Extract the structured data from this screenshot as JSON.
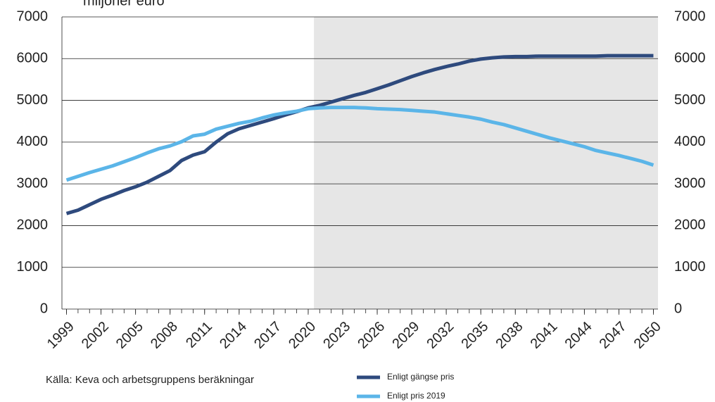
{
  "chart_data": {
    "type": "line",
    "title": "miljoner euro",
    "source": "Källa: Keva och arbetsgruppens beräkningar",
    "x": [
      1999,
      2000,
      2001,
      2002,
      2003,
      2004,
      2005,
      2006,
      2007,
      2008,
      2009,
      2010,
      2011,
      2012,
      2013,
      2014,
      2015,
      2016,
      2017,
      2018,
      2019,
      2020,
      2021,
      2022,
      2023,
      2024,
      2025,
      2026,
      2027,
      2028,
      2029,
      2030,
      2031,
      2032,
      2033,
      2034,
      2035,
      2036,
      2037,
      2038,
      2039,
      2040,
      2041,
      2042,
      2043,
      2044,
      2045,
      2046,
      2047,
      2048,
      2049,
      2050
    ],
    "series": [
      {
        "name": "Enligt gängse pris",
        "color": "#2e4a7d",
        "values": [
          2290,
          2370,
          2500,
          2630,
          2730,
          2840,
          2930,
          3040,
          3180,
          3320,
          3560,
          3690,
          3770,
          4000,
          4200,
          4320,
          4400,
          4480,
          4560,
          4650,
          4730,
          4820,
          4880,
          4960,
          5040,
          5120,
          5190,
          5280,
          5370,
          5470,
          5570,
          5660,
          5740,
          5810,
          5870,
          5940,
          5990,
          6020,
          6040,
          6050,
          6050,
          6060,
          6060,
          6060,
          6060,
          6060,
          6060,
          6070,
          6070,
          6070,
          6070,
          6070
        ]
      },
      {
        "name": "Enligt pris 2019",
        "color": "#5bb5e8",
        "values": [
          3090,
          3180,
          3270,
          3350,
          3430,
          3530,
          3630,
          3740,
          3840,
          3910,
          4010,
          4150,
          4190,
          4310,
          4380,
          4450,
          4500,
          4580,
          4650,
          4700,
          4740,
          4800,
          4820,
          4830,
          4830,
          4830,
          4820,
          4800,
          4790,
          4780,
          4760,
          4740,
          4720,
          4680,
          4640,
          4600,
          4550,
          4480,
          4420,
          4340,
          4260,
          4180,
          4100,
          4030,
          3960,
          3890,
          3800,
          3740,
          3680,
          3610,
          3540,
          3450
        ]
      }
    ],
    "xlim": [
      1998.6,
      2050.4
    ],
    "xticks": [
      1999,
      2002,
      2005,
      2008,
      2011,
      2014,
      2017,
      2020,
      2023,
      2026,
      2029,
      2032,
      2035,
      2038,
      2041,
      2044,
      2047,
      2050
    ],
    "ylim": [
      0,
      7000
    ],
    "yticks": [
      0,
      1000,
      2000,
      3000,
      4000,
      5000,
      6000,
      7000
    ],
    "y2lim": [
      0,
      7000
    ],
    "y2ticks": [
      0,
      1000,
      2000,
      3000,
      4000,
      5000,
      6000,
      7000
    ],
    "shaded_region": [
      2020.5,
      2050.4
    ],
    "grid": true,
    "legend": "bottom"
  }
}
